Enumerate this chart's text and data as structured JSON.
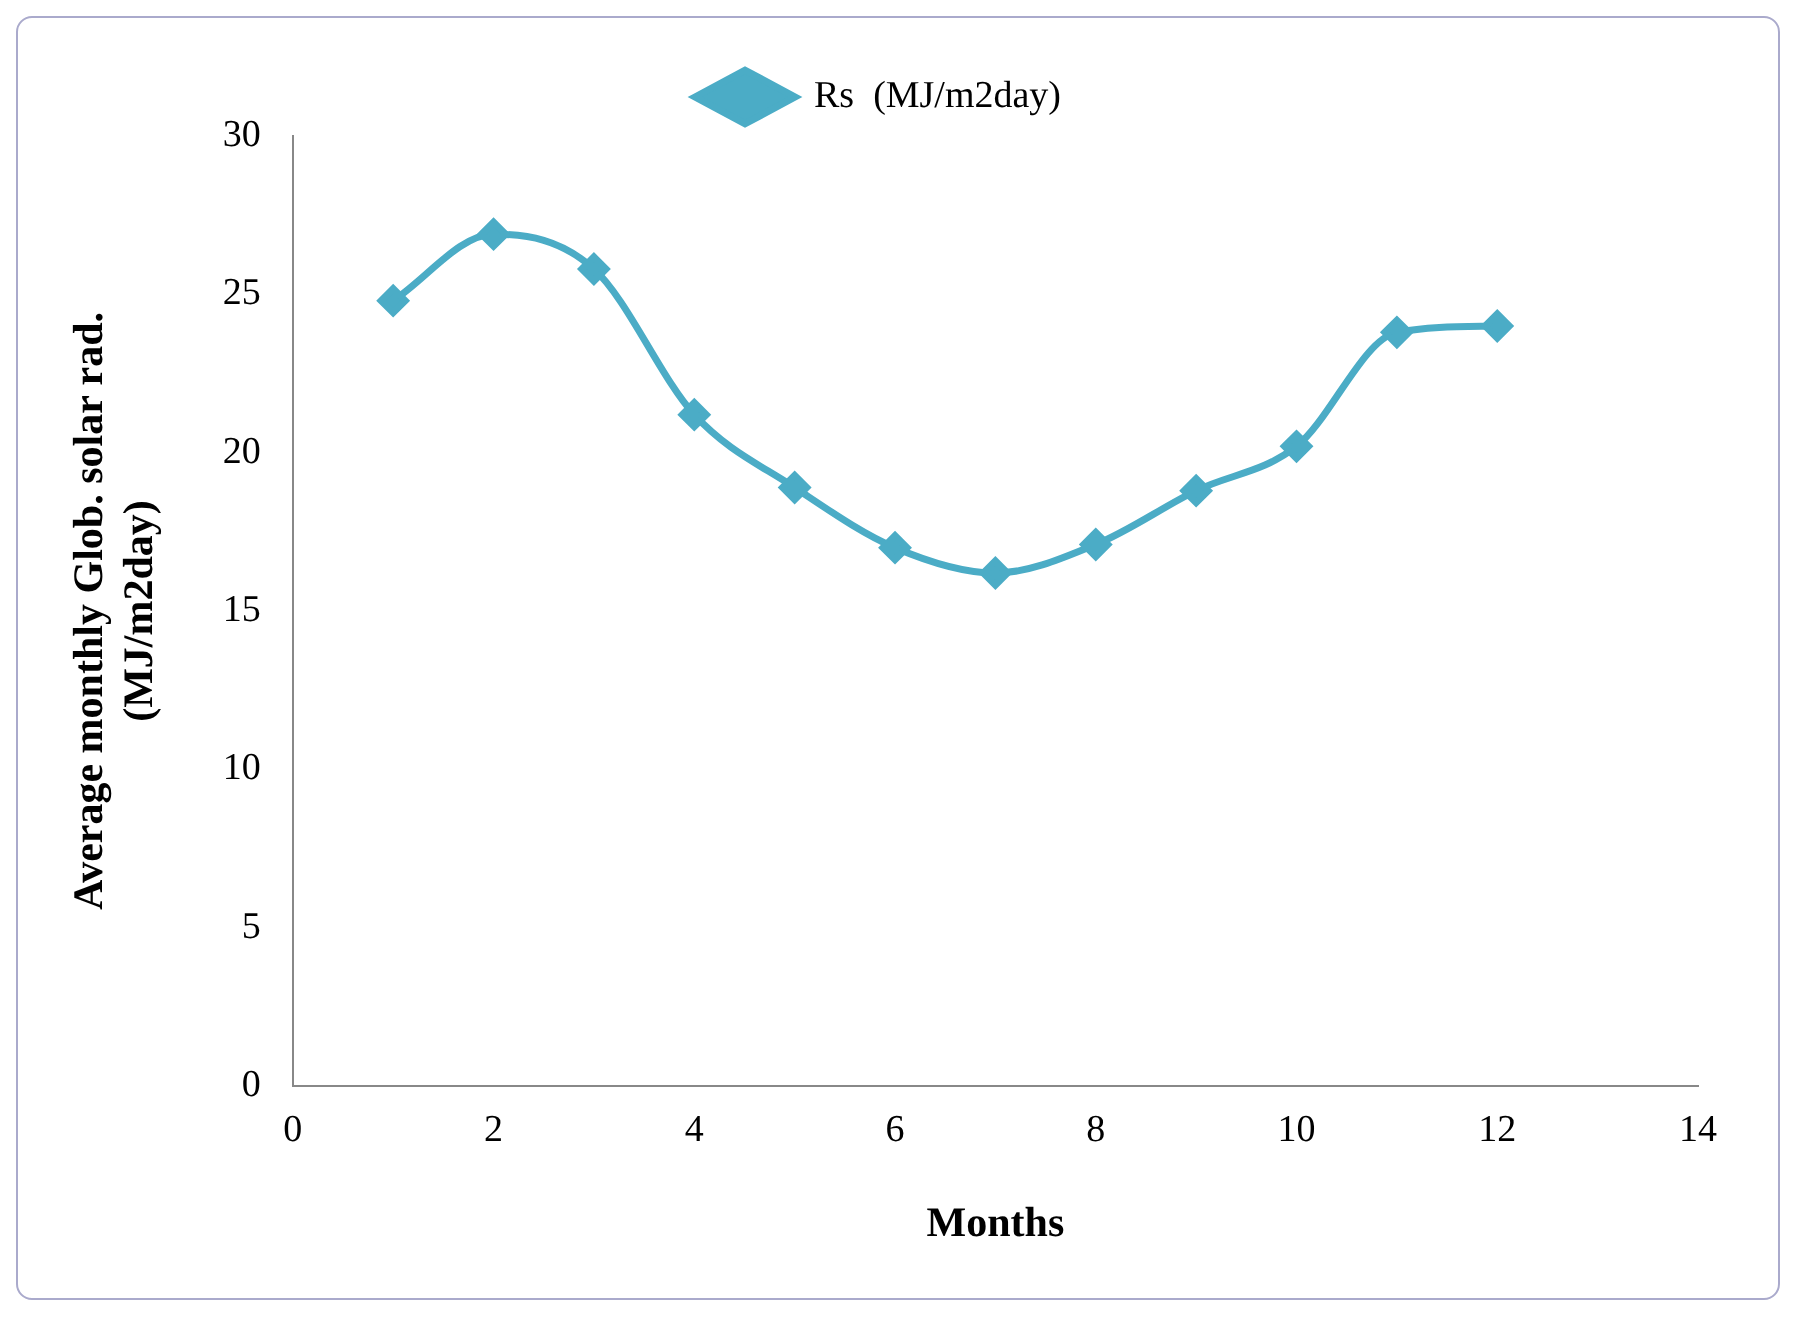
{
  "chart_data": {
    "type": "line",
    "xlabel": "Months",
    "ylabel": "Average monthly Glob. solar rad.\n(MJ/m2day)",
    "x": [
      1,
      2,
      3,
      4,
      5,
      6,
      7,
      8,
      9,
      10,
      11,
      12
    ],
    "series": [
      {
        "name": "Rs  (MJ/m2day)",
        "color": "#4bacc6",
        "values": [
          24.8,
          26.9,
          25.8,
          21.2,
          18.9,
          17.0,
          16.2,
          17.1,
          18.8,
          20.2,
          23.8,
          24.0
        ]
      }
    ],
    "xlim": [
      0,
      14
    ],
    "xticks": [
      0,
      2,
      4,
      6,
      8,
      10,
      12,
      14
    ],
    "ylim": [
      0,
      30
    ],
    "yticks": [
      0,
      5,
      10,
      15,
      20,
      25,
      30
    ],
    "grid": false,
    "legend": "top",
    "marker": "diamond",
    "line_style": "solid"
  }
}
